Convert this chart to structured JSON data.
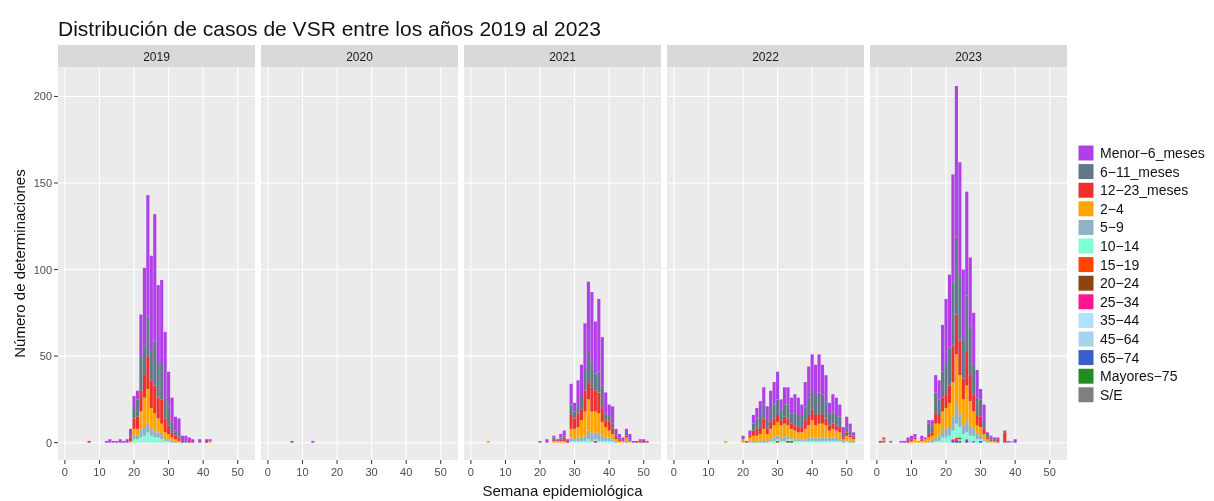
{
  "chart_data": [
    {
      "type": "bar",
      "stacked": true,
      "title": "Distribución de casos de VSR entre los años 2019 al 2023",
      "subtitle": "2019",
      "ylabel": "Número de determinaciones",
      "xlim": [
        -2,
        55
      ],
      "ylim": [
        -10,
        217
      ],
      "xticks": [
        0,
        10,
        20,
        30,
        40,
        50
      ],
      "yticks": [
        0,
        50,
        100,
        150,
        200
      ],
      "grid": true,
      "legend": false,
      "x": [
        7,
        12,
        13,
        14,
        15,
        16,
        17,
        18,
        19,
        20,
        21,
        22,
        23,
        24,
        25,
        26,
        27,
        28,
        29,
        30,
        31,
        32,
        33,
        34,
        35,
        36,
        37,
        39,
        41,
        42
      ],
      "series": [
        {
          "color": "#b0e2ff",
          "values": [
            0,
            0,
            0,
            0,
            0,
            0,
            0,
            0,
            0,
            0,
            0,
            0,
            0,
            1,
            0,
            0,
            0,
            0,
            0,
            0,
            0,
            0,
            0,
            0,
            0,
            0,
            0,
            0,
            0,
            0
          ]
        },
        {
          "color": "#7fffd4",
          "values": [
            0,
            0,
            0,
            0,
            0,
            0,
            0,
            0,
            0,
            2,
            2,
            3,
            4,
            5,
            4,
            3,
            3,
            2,
            1,
            1,
            0,
            0,
            0,
            0,
            0,
            0,
            0,
            0,
            0,
            0
          ]
        },
        {
          "color": "#8fb2c8",
          "values": [
            0,
            0,
            0,
            0,
            0,
            0,
            0,
            0,
            0,
            2,
            2,
            5,
            5,
            5,
            4,
            4,
            3,
            3,
            1,
            1,
            1,
            1,
            0,
            0,
            0,
            0,
            0,
            0,
            0,
            0
          ]
        },
        {
          "color": "#ffa500",
          "values": [
            0,
            0,
            0,
            0,
            0,
            0,
            0,
            0,
            1,
            4,
            4,
            10,
            17,
            20,
            12,
            10,
            8,
            6,
            4,
            3,
            2,
            1,
            1,
            0,
            0,
            0,
            0,
            0,
            0,
            1
          ]
        },
        {
          "color": "#ee3030",
          "values": [
            1,
            0,
            0,
            0,
            0,
            0,
            0,
            0,
            2,
            6,
            7,
            12,
            13,
            19,
            16,
            16,
            12,
            14,
            8,
            5,
            3,
            2,
            2,
            0,
            0,
            1,
            0,
            0,
            1,
            0
          ]
        },
        {
          "color": "#607888",
          "values": [
            0,
            0,
            0,
            0,
            0,
            0,
            0,
            0,
            1,
            6,
            10,
            20,
            17,
            23,
            17,
            26,
            20,
            21,
            12,
            11,
            6,
            3,
            2,
            1,
            1,
            0,
            0,
            0,
            0,
            0
          ]
        },
        {
          "color": "#b03fe8",
          "values": [
            0,
            1,
            2,
            1,
            1,
            2,
            1,
            2,
            4,
            7,
            5,
            24,
            45,
            70,
            55,
            73,
            45,
            48,
            38,
            20,
            14,
            8,
            9,
            3,
            3,
            2,
            2,
            2,
            1,
            1
          ]
        }
      ]
    },
    {
      "type": "bar",
      "stacked": true,
      "subtitle": "2020",
      "xlim": [
        -2,
        55
      ],
      "ylim": [
        -10,
        217
      ],
      "xticks": [
        0,
        10,
        20,
        30,
        40,
        50
      ],
      "yticks": [
        0,
        50,
        100,
        150,
        200
      ],
      "grid": true,
      "legend": false,
      "tick_labels": "x",
      "x": [
        7,
        13
      ],
      "series": [
        {
          "color": "#b03fe8",
          "values": [
            1,
            1
          ]
        }
      ]
    },
    {
      "type": "bar",
      "stacked": true,
      "subtitle": "2021",
      "xlabel": "Semana epidemiológica",
      "xlim": [
        -2,
        55
      ],
      "ylim": [
        -10,
        217
      ],
      "xticks": [
        0,
        10,
        20,
        30,
        40,
        50
      ],
      "yticks": [
        0,
        50,
        100,
        150,
        200
      ],
      "grid": true,
      "legend": false,
      "tick_labels": "x",
      "x": [
        5,
        20,
        22,
        24,
        25,
        26,
        27,
        28,
        29,
        30,
        31,
        32,
        33,
        34,
        35,
        36,
        37,
        38,
        39,
        40,
        41,
        42,
        43,
        44,
        45,
        46,
        47,
        48,
        49,
        50,
        51
      ],
      "series": [
        {
          "color": "#ff1493",
          "values": [
            0,
            0,
            0,
            0,
            0,
            0,
            0,
            0,
            0,
            0,
            0,
            0,
            0,
            0,
            0,
            1,
            0,
            0,
            0,
            0,
            0,
            0,
            0,
            0,
            0,
            0,
            0,
            0,
            0,
            0,
            0
          ]
        },
        {
          "color": "#7fffd4",
          "values": [
            0,
            0,
            0,
            0,
            0,
            0,
            0,
            0,
            1,
            1,
            1,
            1,
            1,
            2,
            1,
            1,
            1,
            1,
            1,
            1,
            1,
            0,
            0,
            0,
            0,
            0,
            0,
            0,
            0,
            0,
            0
          ]
        },
        {
          "color": "#8fb2c8",
          "values": [
            0,
            0,
            0,
            0,
            0,
            0,
            0,
            0,
            2,
            1,
            2,
            2,
            3,
            5,
            4,
            4,
            4,
            3,
            2,
            2,
            1,
            1,
            0,
            0,
            1,
            0,
            0,
            0,
            0,
            0,
            0
          ]
        },
        {
          "color": "#ffa500",
          "values": [
            1,
            0,
            0,
            1,
            1,
            1,
            1,
            0,
            5,
            6,
            6,
            10,
            14,
            18,
            13,
            12,
            12,
            8,
            6,
            4,
            3,
            1,
            1,
            1,
            2,
            1,
            0,
            0,
            0,
            0,
            0
          ]
        },
        {
          "color": "#ee3030",
          "values": [
            0,
            0,
            0,
            1,
            0,
            1,
            2,
            1,
            8,
            6,
            8,
            6,
            12,
            10,
            14,
            12,
            12,
            8,
            4,
            5,
            3,
            2,
            1,
            0,
            1,
            0,
            0,
            1,
            0,
            1,
            0
          ]
        },
        {
          "color": "#607888",
          "values": [
            0,
            0,
            0,
            1,
            0,
            1,
            1,
            0,
            6,
            4,
            4,
            8,
            12,
            18,
            15,
            10,
            12,
            13,
            4,
            4,
            3,
            1,
            1,
            0,
            1,
            1,
            0,
            0,
            1,
            0,
            0
          ]
        },
        {
          "color": "#b03fe8",
          "values": [
            0,
            1,
            2,
            1,
            1,
            2,
            3,
            1,
            12,
            5,
            15,
            18,
            27,
            40,
            40,
            30,
            42,
            28,
            12,
            6,
            10,
            3,
            2,
            2,
            3,
            3,
            1,
            0,
            1,
            1,
            1
          ]
        }
      ]
    },
    {
      "type": "bar",
      "stacked": true,
      "subtitle": "2022",
      "xlim": [
        -2,
        55
      ],
      "ylim": [
        -10,
        217
      ],
      "xticks": [
        0,
        10,
        20,
        30,
        40,
        50
      ],
      "yticks": [
        0,
        50,
        100,
        150,
        200
      ],
      "grid": true,
      "legend": false,
      "tick_labels": "x",
      "x": [
        15,
        20,
        21,
        22,
        23,
        24,
        25,
        26,
        27,
        28,
        29,
        30,
        31,
        32,
        33,
        34,
        35,
        36,
        37,
        38,
        39,
        40,
        41,
        42,
        43,
        44,
        45,
        46,
        47,
        48,
        49,
        50,
        51,
        52
      ],
      "series": [
        {
          "color": "#228b22",
          "values": [
            0,
            0,
            0,
            0,
            0,
            0,
            0,
            0,
            0,
            0,
            0,
            0,
            0,
            0,
            0,
            1,
            0,
            0,
            0,
            0,
            0,
            0,
            0,
            0,
            0,
            0,
            0,
            0,
            0,
            0,
            0,
            0,
            0,
            0
          ]
        },
        {
          "color": "#8b4513",
          "values": [
            0,
            0,
            0,
            0,
            0,
            0,
            0,
            0,
            0,
            0,
            0,
            0,
            0,
            0,
            1,
            0,
            0,
            0,
            0,
            0,
            0,
            0,
            0,
            0,
            0,
            0,
            0,
            0,
            0,
            0,
            0,
            0,
            0,
            0
          ]
        },
        {
          "color": "#ff4500",
          "values": [
            0,
            0,
            0,
            0,
            0,
            0,
            0,
            0,
            0,
            0,
            0,
            1,
            0,
            0,
            0,
            0,
            0,
            0,
            0,
            0,
            0,
            0,
            0,
            0,
            0,
            0,
            0,
            0,
            0,
            0,
            0,
            0,
            0,
            0
          ]
        },
        {
          "color": "#7fffd4",
          "values": [
            0,
            0,
            0,
            0,
            0,
            0,
            0,
            0,
            0,
            1,
            1,
            1,
            1,
            1,
            1,
            1,
            1,
            1,
            1,
            1,
            1,
            1,
            1,
            1,
            1,
            1,
            1,
            1,
            1,
            1,
            0,
            1,
            0,
            0
          ]
        },
        {
          "color": "#8fb2c8",
          "values": [
            0,
            0,
            0,
            1,
            1,
            1,
            1,
            2,
            1,
            1,
            2,
            2,
            2,
            2,
            2,
            1,
            1,
            1,
            1,
            1,
            2,
            2,
            2,
            2,
            2,
            2,
            2,
            2,
            2,
            1,
            1,
            1,
            1,
            1
          ]
        },
        {
          "color": "#ffa500",
          "values": [
            1,
            2,
            0,
            2,
            3,
            3,
            4,
            6,
            4,
            6,
            7,
            8,
            7,
            8,
            6,
            5,
            5,
            4,
            4,
            6,
            7,
            10,
            7,
            8,
            8,
            7,
            4,
            5,
            4,
            4,
            1,
            2,
            2,
            1
          ]
        },
        {
          "color": "#ee3030",
          "values": [
            0,
            0,
            0,
            1,
            3,
            4,
            4,
            6,
            3,
            4,
            4,
            4,
            3,
            4,
            4,
            3,
            3,
            3,
            3,
            5,
            6,
            6,
            6,
            6,
            5,
            4,
            3,
            3,
            3,
            3,
            1,
            2,
            1,
            1
          ]
        },
        {
          "color": "#607888",
          "values": [
            0,
            0,
            0,
            0,
            4,
            6,
            7,
            8,
            5,
            8,
            8,
            9,
            6,
            7,
            8,
            6,
            7,
            7,
            7,
            8,
            10,
            12,
            11,
            12,
            12,
            10,
            7,
            7,
            6,
            6,
            2,
            3,
            3,
            1
          ]
        },
        {
          "color": "#b03fe8",
          "values": [
            0,
            2,
            1,
            3,
            5,
            6,
            8,
            10,
            8,
            10,
            13,
            16,
            6,
            10,
            10,
            9,
            11,
            10,
            6,
            14,
            18,
            20,
            18,
            22,
            17,
            15,
            6,
            10,
            10,
            7,
            4,
            6,
            4,
            2
          ]
        }
      ]
    },
    {
      "type": "bar",
      "stacked": true,
      "subtitle": "2023",
      "xlim": [
        -2,
        55
      ],
      "ylim": [
        -10,
        217
      ],
      "xticks": [
        0,
        10,
        20,
        30,
        40,
        50
      ],
      "yticks": [
        0,
        50,
        100,
        150,
        200
      ],
      "grid": true,
      "legend": "right",
      "tick_labels": "x",
      "x": [
        1,
        2,
        4,
        7,
        8,
        9,
        10,
        11,
        12,
        13,
        14,
        15,
        16,
        17,
        18,
        19,
        20,
        21,
        22,
        23,
        24,
        25,
        26,
        27,
        28,
        29,
        30,
        31,
        32,
        33,
        34,
        35,
        37,
        38,
        39,
        40
      ],
      "series": [
        {
          "name": "S/E",
          "color": "#7f7f7f",
          "values": [
            0,
            1,
            1,
            0,
            0,
            0,
            0,
            0,
            0,
            0,
            0,
            0,
            0,
            0,
            0,
            0,
            0,
            0,
            0,
            0,
            0,
            0,
            0,
            0,
            1,
            0,
            0,
            0,
            0,
            0,
            0,
            1,
            0,
            0,
            0,
            0
          ]
        },
        {
          "name": "Mayores−75",
          "color": "#228b22",
          "values": [
            0,
            0,
            0,
            0,
            0,
            0,
            0,
            0,
            0,
            0,
            0,
            0,
            0,
            0,
            0,
            0,
            0,
            0,
            0,
            0,
            1,
            0,
            0,
            0,
            0,
            0,
            0,
            0,
            0,
            0,
            0,
            0,
            0,
            0,
            0,
            0
          ]
        },
        {
          "name": "65−74",
          "color": "#3a5fcd",
          "values": [
            0,
            0,
            0,
            0,
            0,
            0,
            0,
            0,
            0,
            0,
            0,
            0,
            0,
            0,
            0,
            0,
            0,
            0,
            1,
            1,
            0,
            0,
            1,
            0,
            0,
            0,
            1,
            0,
            0,
            0,
            0,
            0,
            0,
            0,
            0,
            0
          ]
        },
        {
          "name": "45−64",
          "color": "#a4d3ee",
          "values": [
            0,
            0,
            0,
            0,
            0,
            0,
            0,
            0,
            0,
            0,
            0,
            0,
            0,
            0,
            0,
            0,
            0,
            0,
            0,
            0,
            1,
            0,
            0,
            1,
            0,
            0,
            0,
            0,
            0,
            0,
            0,
            0,
            0,
            0,
            0,
            0
          ]
        },
        {
          "name": "35−44",
          "color": "#b0e2ff",
          "values": [
            0,
            0,
            0,
            0,
            0,
            0,
            0,
            0,
            0,
            0,
            0,
            0,
            0,
            0,
            0,
            0,
            0,
            0,
            0,
            0,
            0,
            1,
            0,
            0,
            0,
            0,
            0,
            0,
            0,
            0,
            0,
            0,
            0,
            0,
            0,
            0
          ]
        },
        {
          "name": "25−34",
          "color": "#ff1493",
          "values": [
            0,
            0,
            0,
            0,
            0,
            0,
            0,
            0,
            0,
            0,
            0,
            0,
            0,
            0,
            0,
            0,
            0,
            0,
            1,
            1,
            0,
            0,
            1,
            0,
            0,
            0,
            0,
            0,
            0,
            0,
            0,
            0,
            0,
            0,
            0,
            0
          ]
        },
        {
          "name": "20−24",
          "color": "#8b4513",
          "values": [
            0,
            0,
            0,
            0,
            0,
            0,
            0,
            0,
            0,
            0,
            0,
            0,
            0,
            0,
            0,
            0,
            0,
            0,
            0,
            0,
            1,
            0,
            0,
            0,
            0,
            0,
            0,
            0,
            0,
            0,
            0,
            0,
            0,
            0,
            0,
            0
          ]
        },
        {
          "name": "15−19",
          "color": "#ff4500",
          "values": [
            0,
            0,
            0,
            0,
            0,
            0,
            0,
            0,
            0,
            0,
            0,
            0,
            0,
            0,
            0,
            0,
            0,
            0,
            0,
            1,
            0,
            0,
            0,
            0,
            0,
            0,
            0,
            0,
            0,
            0,
            0,
            0,
            0,
            0,
            0,
            0
          ]
        },
        {
          "name": "10−14",
          "color": "#7fffd4",
          "values": [
            0,
            0,
            0,
            0,
            0,
            0,
            0,
            0,
            0,
            0,
            0,
            0,
            0,
            1,
            1,
            3,
            3,
            4,
            5,
            8,
            6,
            4,
            4,
            3,
            3,
            2,
            1,
            1,
            0,
            0,
            0,
            0,
            0,
            0,
            0,
            0
          ]
        },
        {
          "name": "5−9",
          "color": "#8fb2c8",
          "values": [
            0,
            0,
            0,
            0,
            0,
            0,
            0,
            0,
            0,
            0,
            0,
            1,
            1,
            2,
            3,
            5,
            5,
            5,
            8,
            12,
            8,
            5,
            7,
            6,
            4,
            3,
            2,
            1,
            1,
            0,
            0,
            0,
            0,
            0,
            1,
            0
          ]
        },
        {
          "name": "2−4",
          "color": "#ffa500",
          "values": [
            0,
            1,
            0,
            0,
            0,
            0,
            1,
            2,
            1,
            1,
            2,
            2,
            3,
            8,
            7,
            10,
            12,
            14,
            20,
            28,
            22,
            15,
            20,
            14,
            10,
            5,
            5,
            3,
            1,
            1,
            1,
            0,
            0,
            0,
            0,
            0
          ]
        },
        {
          "name": "12−23_meses",
          "color": "#ee3030",
          "values": [
            1,
            0,
            0,
            0,
            0,
            1,
            1,
            1,
            0,
            1,
            0,
            2,
            2,
            6,
            5,
            8,
            8,
            10,
            21,
            23,
            20,
            12,
            20,
            15,
            10,
            6,
            6,
            3,
            1,
            1,
            0,
            1,
            6,
            0,
            0,
            0
          ]
        },
        {
          "name": "6−11_meses",
          "color": "#607888",
          "values": [
            0,
            0,
            0,
            0,
            0,
            0,
            0,
            0,
            0,
            0,
            0,
            6,
            4,
            12,
            9,
            15,
            18,
            22,
            37,
            45,
            38,
            23,
            32,
            28,
            17,
            10,
            10,
            4,
            2,
            1,
            1,
            0,
            0,
            0,
            0,
            0
          ]
        },
        {
          "name": "Menor−6_meses",
          "color": "#b03fe8",
          "values": [
            0,
            1,
            0,
            1,
            1,
            2,
            2,
            2,
            0,
            2,
            1,
            2,
            3,
            10,
            11,
            27,
            37,
            42,
            62,
            87,
            65,
            40,
            60,
            40,
            30,
            16,
            6,
            10,
            1,
            1,
            1,
            1,
            1,
            1,
            0,
            2
          ]
        }
      ]
    }
  ]
}
